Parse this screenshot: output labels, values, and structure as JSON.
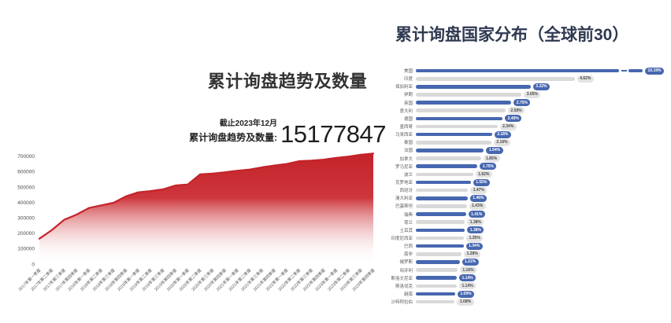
{
  "page": {
    "background": "#ffffff",
    "accent_red": "#c4232a",
    "accent_blue": "#4767b0"
  },
  "trend": {
    "title": "累计询盘趋势及数量",
    "as_of": "截止2023年12月",
    "stat_label": "累计询盘趋势及数量:",
    "total": "15177847"
  },
  "countries": {
    "title": "累计询盘国家分布（全球前30）"
  },
  "chart_data": [
    {
      "type": "area",
      "title": "累计询盘趋势及数量",
      "xlabel": "",
      "ylabel": "",
      "ylim": [
        0,
        700000
      ],
      "yticks": [
        0,
        100000,
        200000,
        300000,
        400000,
        500000,
        600000,
        700000
      ],
      "grid": false,
      "line_color": "#c4232a",
      "fill_gradient": [
        "#c4232a",
        "#ffffff"
      ],
      "x": [
        "2017年第一季度",
        "2017年第二季度",
        "2017年第三季度",
        "2017年第四季度",
        "2018年第一季度",
        "2018年第二季度",
        "2018年第三季度",
        "2018年第四季度",
        "2019年第一季度",
        "2019年第二季度",
        "2019年第三季度",
        "2019年第四季度",
        "2020年第一季度",
        "2020年第二季度",
        "2020年第三季度",
        "2020年第四季度",
        "2021年第一季度",
        "2021年第二季度",
        "2021年第三季度",
        "2021年第四季度",
        "2022年第一季度",
        "2022年第二季度",
        "2022年第三季度",
        "2022年第四季度",
        "2023年第一季度",
        "2023年第二季度",
        "2023年第三季度",
        "2023年第四季度"
      ],
      "values": [
        165000,
        220000,
        287000,
        321000,
        364000,
        381000,
        398000,
        440000,
        466000,
        474000,
        485000,
        510000,
        517000,
        582000,
        588000,
        596000,
        606000,
        614000,
        628000,
        640000,
        650000,
        668000,
        672000,
        678000,
        690000,
        698000,
        710000,
        718000
      ],
      "annotation": {
        "as_of": "截止2023年12月",
        "label": "累计询盘趋势及数量:",
        "value": "15177847"
      }
    },
    {
      "type": "bar",
      "orientation": "horizontal",
      "title": "累计询盘国家分布（全球前30）",
      "unit": "%",
      "legend_position": "none",
      "bar_color_odd_rows": "#4767b0",
      "bar_color_even_rows": "#d9d9d9",
      "axis_break_category": "美国",
      "categories": [
        "美国",
        "印度",
        "保加利亚",
        "伊朗",
        "英国",
        "意大利",
        "德国",
        "墨西哥",
        "马来西亚",
        "泰国",
        "法国",
        "加拿大",
        "罗马尼亚",
        "波兰",
        "克罗地亚",
        "西班牙",
        "澳大利亚",
        "巴基斯坦",
        "瑞典",
        "荷兰",
        "土耳其",
        "印度尼西亚",
        "巴西",
        "南非",
        "俄罗斯",
        "匈牙利",
        "斯洛文尼亚",
        "斯洛伐克",
        "越南",
        "沙特阿拉伯"
      ],
      "values": [
        10.19,
        4.62,
        3.32,
        3.05,
        2.75,
        2.58,
        2.49,
        2.34,
        2.18,
        2.16,
        1.94,
        1.85,
        1.75,
        1.62,
        1.55,
        1.47,
        1.46,
        1.43,
        1.41,
        1.38,
        1.38,
        1.35,
        1.34,
        1.28,
        1.22,
        1.16,
        1.14,
        1.14,
        1.09,
        1.08
      ]
    }
  ]
}
